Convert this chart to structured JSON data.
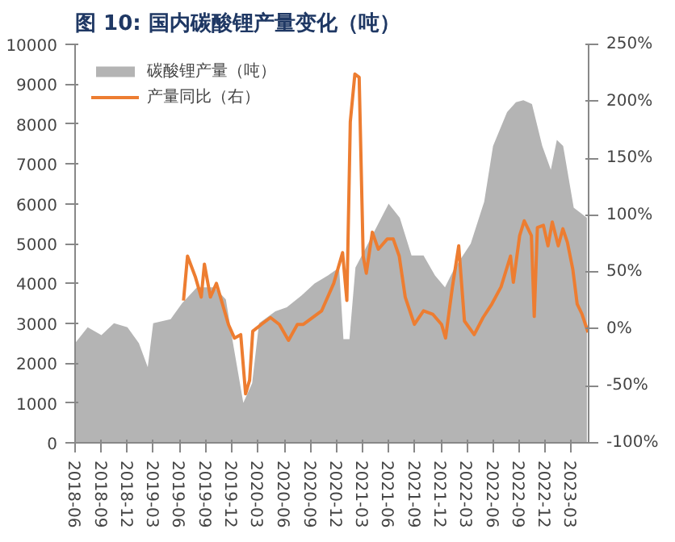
{
  "chart_data": {
    "type": "area",
    "title": "图 10:  国内碳酸锂产量变化（吨）",
    "xlim": [
      "2018-06",
      "2023-05"
    ],
    "xticks": [
      "2018-06",
      "2018-09",
      "2018-12",
      "2019-03",
      "2019-06",
      "2019-09",
      "2019-12",
      "2020-03",
      "2020-06",
      "2020-09",
      "2020-12",
      "2021-03",
      "2021-06",
      "2021-09",
      "2021-12",
      "2022-03",
      "2022-06",
      "2022-09",
      "2022-12",
      "2023-03"
    ],
    "ylim": [
      0,
      10000
    ],
    "yticks": [
      0,
      1000,
      2000,
      3000,
      4000,
      5000,
      6000,
      7000,
      8000,
      9000,
      10000
    ],
    "y2lim": [
      -100,
      250
    ],
    "y2ticks": [
      {
        "value": -100,
        "label": "-100%"
      },
      {
        "value": -50,
        "label": "-50%"
      },
      {
        "value": 0,
        "label": "0%"
      },
      {
        "value": 50,
        "label": "50%"
      },
      {
        "value": 100,
        "label": "100%"
      },
      {
        "value": 150,
        "label": "150%"
      },
      {
        "value": 200,
        "label": "200%"
      },
      {
        "value": 250,
        "label": "250%"
      }
    ],
    "grid": false,
    "legend": "top left",
    "series": [
      {
        "name": "碳酸锂产量（吨）",
        "color": "#b4b4b4",
        "x": [
          "2018-06-01",
          "2018-07-15",
          "2018-09-01",
          "2018-10-15",
          "2018-12-01",
          "2019-01-10",
          "2019-02-10",
          "2019-03-01",
          "2019-05-01",
          "2019-06-10",
          "2019-08-01",
          "2019-10-01",
          "2019-11-10",
          "2019-12-05",
          "2020-01-10",
          "2020-02-10",
          "2020-03-05",
          "2020-05-01",
          "2020-06-10",
          "2020-08-01",
          "2020-09-15",
          "2020-11-01",
          "2020-12-10",
          "2020-12-25",
          "2021-01-15",
          "2021-02-05",
          "2021-03-10",
          "2021-06-01",
          "2021-07-10",
          "2021-08-20",
          "2021-10-01",
          "2021-11-10",
          "2021-12-15",
          "2022-01-15",
          "2022-03-15",
          "2022-05-01",
          "2022-06-01",
          "2022-07-20",
          "2022-08-20",
          "2022-09-15",
          "2022-10-15",
          "2022-11-20",
          "2022-12-20",
          "2023-01-10",
          "2023-02-01",
          "2023-03-10",
          "2023-04-25"
        ],
        "values": [
          2500,
          2900,
          2700,
          3000,
          2900,
          2500,
          1900,
          3000,
          3100,
          3500,
          3900,
          3900,
          3600,
          2500,
          1000,
          1500,
          3000,
          3300,
          3400,
          3700,
          4000,
          4200,
          4400,
          2600,
          2600,
          4400,
          4850,
          6000,
          5650,
          4700,
          4700,
          4200,
          3900,
          4350,
          5000,
          6050,
          7450,
          8300,
          8550,
          8600,
          8500,
          7450,
          6850,
          7600,
          7450,
          5900,
          5650
        ]
      },
      {
        "name": "产量同比（右）",
        "type": "line",
        "axis": "y2",
        "color": "#ed7d31",
        "x": [
          "2019-06-15",
          "2019-06-29",
          "2019-07-26",
          "2019-08-16",
          "2019-08-27",
          "2019-09-17",
          "2019-10-08",
          "2019-10-29",
          "2019-11-19",
          "2019-12-10",
          "2020-01-01",
          "2020-01-18",
          "2020-02-01",
          "2020-02-12",
          "2020-03-13",
          "2020-04-14",
          "2020-05-15",
          "2020-06-16",
          "2020-07-17",
          "2020-08-07",
          "2020-10-10",
          "2020-11-21",
          "2020-12-22",
          "2021-01-06",
          "2021-01-18",
          "2021-02-03",
          "2021-02-18",
          "2021-03-04",
          "2021-03-15",
          "2021-04-05",
          "2021-04-26",
          "2021-05-27",
          "2021-06-17",
          "2021-07-08",
          "2021-07-29",
          "2021-08-30",
          "2021-10-01",
          "2021-11-02",
          "2021-12-03",
          "2021-12-17",
          "2022-01-10",
          "2022-02-01",
          "2022-02-21",
          "2022-03-27",
          "2022-04-27",
          "2022-05-28",
          "2022-06-29",
          "2022-08-01",
          "2022-08-11",
          "2022-09-02",
          "2022-09-18",
          "2022-10-13",
          "2022-10-23",
          "2022-11-03",
          "2022-11-24",
          "2022-12-10",
          "2022-12-25",
          "2023-01-15",
          "2023-01-31",
          "2023-02-16",
          "2023-03-07",
          "2023-03-22",
          "2023-04-08",
          "2023-04-29"
        ],
        "values": [
          25,
          64,
          46,
          28,
          57,
          28,
          40,
          22,
          4,
          -8,
          -5,
          -57,
          -45,
          -2,
          4,
          10,
          4,
          -10,
          4,
          4,
          16,
          40,
          67,
          25,
          182,
          224,
          221,
          64,
          49,
          85,
          70,
          79,
          79,
          64,
          28,
          4,
          16,
          13,
          4,
          -8,
          37,
          73,
          7,
          -5,
          10,
          22,
          37,
          64,
          41,
          82,
          95,
          82,
          11,
          89,
          91,
          73,
          94,
          73,
          88,
          76,
          52,
          22,
          13,
          -3
        ]
      }
    ]
  }
}
